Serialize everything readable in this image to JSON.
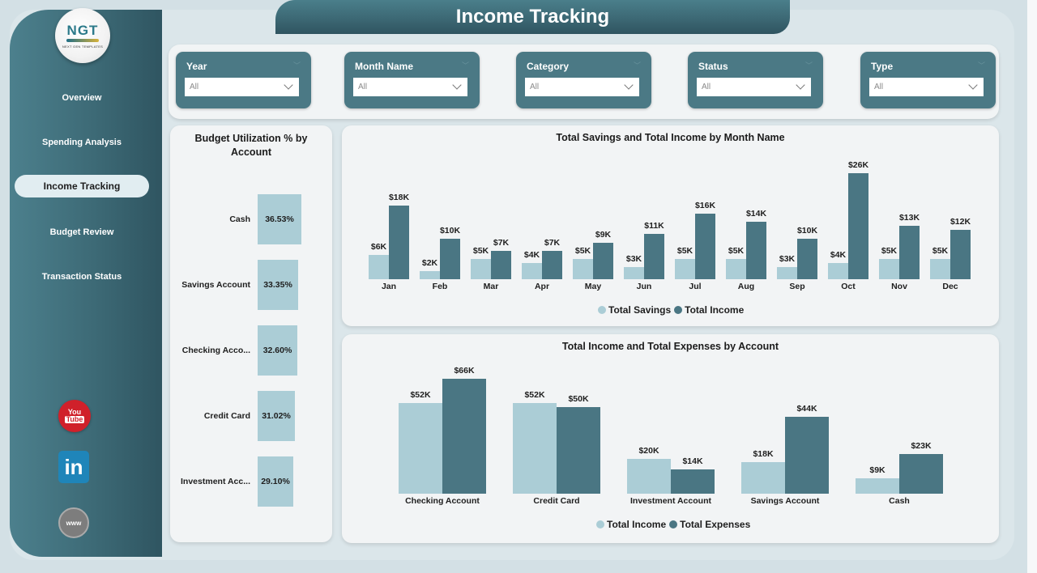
{
  "header": {
    "title": "Income Tracking"
  },
  "logo": {
    "text": "NGT",
    "subtitle": "NEXT GEN TEMPLATES"
  },
  "sidebar": {
    "items": [
      {
        "label": "Overview",
        "active": false
      },
      {
        "label": "Spending Analysis",
        "active": false
      },
      {
        "label": "Income Tracking",
        "active": true
      },
      {
        "label": "Budget Review",
        "active": false
      },
      {
        "label": "Transaction Status",
        "active": false
      }
    ],
    "social": [
      {
        "name": "youtube-icon",
        "top_text": "You",
        "bottom_text": "Tube"
      },
      {
        "name": "linkedin-icon",
        "text": "in"
      },
      {
        "name": "website-icon",
        "text": "www"
      }
    ]
  },
  "filters": [
    {
      "label": "Year",
      "value": "All"
    },
    {
      "label": "Month Name",
      "value": "All"
    },
    {
      "label": "Category",
      "value": "All"
    },
    {
      "label": "Status",
      "value": "All"
    },
    {
      "label": "Type",
      "value": "All"
    }
  ],
  "colors": {
    "light": "#abcdd6",
    "dark": "#4a7683",
    "sidebar": "#3d6a76"
  },
  "chart_data": [
    {
      "type": "bar",
      "title": "Budget Utilization % by Account",
      "orientation": "horizontal",
      "categories": [
        "Cash",
        "Savings Account",
        "Checking Acco...",
        "Credit Card",
        "Investment Acc..."
      ],
      "values": [
        36.53,
        33.35,
        32.6,
        31.02,
        29.1
      ],
      "labels": [
        "36.53%",
        "33.35%",
        "32.60%",
        "31.02%",
        "29.10%"
      ],
      "xlabel": "",
      "ylabel": ""
    },
    {
      "type": "bar",
      "title": "Total Savings and Total Income by Month Name",
      "categories": [
        "Jan",
        "Feb",
        "Mar",
        "Apr",
        "May",
        "Jun",
        "Jul",
        "Aug",
        "Sep",
        "Oct",
        "Nov",
        "Dec"
      ],
      "series": [
        {
          "name": "Total Savings",
          "values": [
            6,
            2,
            5,
            4,
            5,
            3,
            5,
            5,
            3,
            4,
            5,
            5
          ],
          "labels": [
            "$6K",
            "$2K",
            "$5K",
            "$4K",
            "$5K",
            "$3K",
            "$5K",
            "$5K",
            "$3K",
            "$4K",
            "$5K",
            "$5K"
          ]
        },
        {
          "name": "Total Income",
          "values": [
            18,
            10,
            7,
            7,
            9,
            11,
            16,
            14,
            10,
            26,
            13,
            12
          ],
          "labels": [
            "$18K",
            "$10K",
            "$7K",
            "$7K",
            "$9K",
            "$11K",
            "$16K",
            "$14K",
            "$10K",
            "$26K",
            "$13K",
            "$12K"
          ]
        }
      ],
      "unit": "$K",
      "legend_position": "bottom",
      "grid": false
    },
    {
      "type": "bar",
      "title": "Total Income and Total Expenses by Account",
      "categories": [
        "Checking Account",
        "Credit Card",
        "Investment Account",
        "Savings Account",
        "Cash"
      ],
      "series": [
        {
          "name": "Total Income",
          "values": [
            52,
            52,
            20,
            18,
            9
          ],
          "labels": [
            "$52K",
            "$52K",
            "$20K",
            "$18K",
            "$9K"
          ]
        },
        {
          "name": "Total Expenses",
          "values": [
            66,
            50,
            14,
            44,
            23
          ],
          "labels": [
            "$66K",
            "$50K",
            "$14K",
            "$44K",
            "$23K"
          ]
        }
      ],
      "unit": "$K",
      "legend_position": "bottom",
      "grid": false
    }
  ]
}
